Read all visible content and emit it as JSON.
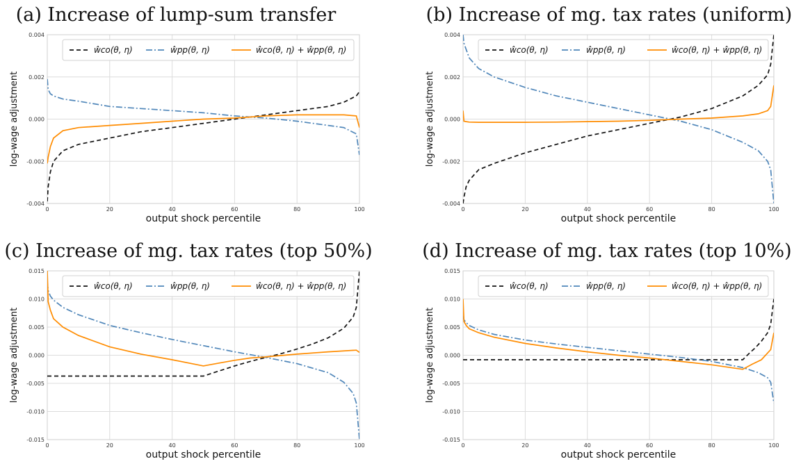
{
  "chart_data": [
    {
      "type": "line",
      "title": "(a) Increase of lump-sum transfer",
      "xlabel": "output shock percentile",
      "ylabel": "log-wage adjustment",
      "xlim": [
        0,
        100
      ],
      "ylim": [
        -0.004,
        0.004
      ],
      "xticks": [
        "0",
        "20",
        "40",
        "60",
        "80",
        "100"
      ],
      "yticks": [
        "-0.004",
        "-0.002",
        "0.000",
        "0.002",
        "0.004"
      ],
      "grid": true,
      "legend_position": "top",
      "series": [
        {
          "name": "ŵco(θ, η)",
          "style": "dashed",
          "color": "#111111",
          "x": [
            0,
            0.3,
            1,
            2,
            5,
            10,
            20,
            30,
            40,
            50,
            60,
            65,
            70,
            80,
            90,
            95,
            99,
            100
          ],
          "y": [
            -0.0039,
            -0.0032,
            -0.0025,
            -0.002,
            -0.0015,
            -0.0012,
            -0.0009,
            -0.0006,
            -0.0004,
            -0.0002,
            0.0,
            0.0001,
            0.0002,
            0.0004,
            0.0006,
            0.0008,
            0.0011,
            0.0013
          ]
        },
        {
          "name": "ŵpp(θ, η)",
          "style": "dashdot",
          "color": "#4f86b9",
          "x": [
            0,
            0.3,
            1,
            2,
            5,
            10,
            20,
            30,
            40,
            50,
            60,
            65,
            70,
            80,
            90,
            95,
            99,
            100
          ],
          "y": [
            0.0019,
            0.0014,
            0.0012,
            0.0011,
            0.00095,
            0.00085,
            0.0006,
            0.0005,
            0.0004,
            0.0003,
            0.00015,
            0.0001,
            5e-05,
            -0.0001,
            -0.0003,
            -0.0004,
            -0.0007,
            -0.0017
          ]
        },
        {
          "name": "ŵco(θ, η) + ŵpp(θ, η)",
          "style": "solid",
          "color": "#ff8c00",
          "x": [
            0,
            0.3,
            1,
            2,
            5,
            10,
            20,
            30,
            40,
            50,
            60,
            65,
            70,
            80,
            90,
            95,
            99,
            100
          ],
          "y": [
            -0.0021,
            -0.0018,
            -0.0013,
            -0.0009,
            -0.00055,
            -0.0004,
            -0.0003,
            -0.0002,
            -0.0001,
            0.0,
            5e-05,
            0.0001,
            0.00015,
            0.0002,
            0.0002,
            0.0002,
            0.00015,
            -0.0004
          ]
        }
      ]
    },
    {
      "type": "line",
      "title": "(b) Increase of mg. tax rates (uniform)",
      "xlabel": "output shock percentile",
      "ylabel": "log-wage adjustment",
      "xlim": [
        0,
        100
      ],
      "ylim": [
        -0.004,
        0.004
      ],
      "xticks": [
        "0",
        "20",
        "40",
        "60",
        "80",
        "100"
      ],
      "yticks": [
        "-0.004",
        "-0.002",
        "0.000",
        "0.002",
        "0.004"
      ],
      "grid": true,
      "legend_position": "top",
      "series": [
        {
          "name": "ŵco(θ, η)",
          "style": "dashed",
          "color": "#111111",
          "x": [
            0,
            0.3,
            1,
            2,
            5,
            10,
            20,
            30,
            40,
            50,
            60,
            70,
            80,
            90,
            95,
            98,
            99,
            100
          ],
          "y": [
            -0.004,
            -0.0037,
            -0.0032,
            -0.0029,
            -0.0024,
            -0.0021,
            -0.0016,
            -0.0012,
            -0.0008,
            -0.0005,
            -0.0002,
            0.0001,
            0.0005,
            0.0011,
            0.0016,
            0.0021,
            0.0026,
            0.004
          ]
        },
        {
          "name": "ŵpp(θ, η)",
          "style": "dashdot",
          "color": "#4f86b9",
          "x": [
            0,
            0.3,
            1,
            2,
            5,
            10,
            20,
            30,
            40,
            50,
            60,
            70,
            80,
            90,
            95,
            98,
            99,
            100
          ],
          "y": [
            0.004,
            0.0036,
            0.0033,
            0.0029,
            0.0024,
            0.002,
            0.0015,
            0.0011,
            0.0008,
            0.0005,
            0.0002,
            -0.0001,
            -0.0005,
            -0.0011,
            -0.0015,
            -0.002,
            -0.0024,
            -0.004
          ]
        },
        {
          "name": "ŵco(θ, η) + ŵpp(θ, η)",
          "style": "solid",
          "color": "#ff8c00",
          "x": [
            0,
            0.3,
            1,
            2,
            5,
            10,
            20,
            30,
            40,
            50,
            60,
            70,
            80,
            90,
            95,
            98,
            99,
            100
          ],
          "y": [
            0.0004,
            -0.0001,
            -0.00012,
            -0.00014,
            -0.00015,
            -0.00015,
            -0.00015,
            -0.00014,
            -0.00012,
            -0.0001,
            -6e-05,
            0.0,
            5e-05,
            0.00015,
            0.00025,
            0.0004,
            0.0006,
            0.0016
          ]
        }
      ]
    },
    {
      "type": "line",
      "title": "(c) Increase of mg. tax rates (top 50%)",
      "xlabel": "output shock percentile",
      "ylabel": "log-wage adjustment",
      "xlim": [
        0,
        100
      ],
      "ylim": [
        -0.015,
        0.015
      ],
      "xticks": [
        "0",
        "20",
        "40",
        "60",
        "80",
        "100"
      ],
      "yticks": [
        "-0.015",
        "-0.010",
        "-0.005",
        "0.000",
        "0.005",
        "0.010",
        "0.015"
      ],
      "grid": true,
      "legend_position": "top",
      "series": [
        {
          "name": "ŵco(θ, η)",
          "style": "dashed",
          "color": "#111111",
          "x": [
            0,
            10,
            20,
            30,
            40,
            50,
            55,
            60,
            65,
            70,
            75,
            80,
            85,
            90,
            95,
            98,
            99,
            100
          ],
          "y": [
            -0.0037,
            -0.0037,
            -0.0037,
            -0.0037,
            -0.0037,
            -0.0037,
            -0.0028,
            -0.0019,
            -0.0011,
            -0.0004,
            0.0003,
            0.0011,
            0.002,
            0.0031,
            0.0048,
            0.0068,
            0.0085,
            0.015
          ]
        },
        {
          "name": "ŵpp(θ, η)",
          "style": "dashdot",
          "color": "#4f86b9",
          "x": [
            0,
            0.3,
            1,
            2,
            5,
            10,
            20,
            30,
            40,
            50,
            60,
            70,
            80,
            90,
            95,
            98,
            99,
            100
          ],
          "y": [
            0.013,
            0.0115,
            0.0105,
            0.0098,
            0.0085,
            0.0072,
            0.0053,
            0.004,
            0.0028,
            0.0017,
            0.0006,
            -0.0004,
            -0.0015,
            -0.0031,
            -0.0048,
            -0.0068,
            -0.0085,
            -0.015
          ]
        },
        {
          "name": "ŵco(θ, η) + ŵpp(θ, η)",
          "style": "solid",
          "color": "#ff8c00",
          "x": [
            0,
            0.3,
            1,
            2,
            5,
            10,
            20,
            30,
            40,
            50,
            55,
            60,
            65,
            70,
            80,
            90,
            99,
            100
          ],
          "y": [
            0.015,
            0.0095,
            0.008,
            0.0065,
            0.005,
            0.0035,
            0.0015,
            0.0002,
            -0.0008,
            -0.0019,
            -0.0014,
            -0.0009,
            -0.0005,
            -0.0003,
            0.0002,
            0.0006,
            0.0009,
            0.0005
          ]
        }
      ]
    },
    {
      "type": "line",
      "title": "(d) Increase of mg. tax rates (top 10%)",
      "xlabel": "output shock percentile",
      "ylabel": "log-wage adjustment",
      "xlim": [
        0,
        100
      ],
      "ylim": [
        -0.015,
        0.015
      ],
      "xticks": [
        "0",
        "20",
        "40",
        "60",
        "80",
        "100"
      ],
      "yticks": [
        "-0.015",
        "-0.010",
        "-0.005",
        "0.000",
        "0.005",
        "0.010",
        "0.015"
      ],
      "grid": true,
      "legend_position": "top",
      "series": [
        {
          "name": "ŵco(θ, η)",
          "style": "dashed",
          "color": "#111111",
          "x": [
            0,
            10,
            20,
            30,
            40,
            50,
            60,
            70,
            80,
            90,
            92,
            94,
            96,
            98,
            99,
            100
          ],
          "y": [
            -0.0008,
            -0.0008,
            -0.0008,
            -0.0008,
            -0.0008,
            -0.0008,
            -0.0008,
            -0.0008,
            -0.0008,
            -0.0008,
            0.0003,
            0.0013,
            0.0025,
            0.004,
            0.0055,
            0.01
          ]
        },
        {
          "name": "ŵpp(θ, η)",
          "style": "dashdot",
          "color": "#4f86b9",
          "x": [
            0,
            0.3,
            1,
            2,
            5,
            10,
            20,
            30,
            40,
            50,
            60,
            70,
            80,
            90,
            95,
            98,
            99,
            100
          ],
          "y": [
            0.007,
            0.0063,
            0.0058,
            0.0053,
            0.0045,
            0.0037,
            0.0027,
            0.002,
            0.0014,
            0.0008,
            0.0002,
            -0.0004,
            -0.0011,
            -0.0022,
            -0.0031,
            -0.004,
            -0.0048,
            -0.0085
          ]
        },
        {
          "name": "ŵco(θ, η) + ŵpp(θ, η)",
          "style": "solid",
          "color": "#ff8c00",
          "x": [
            0,
            0.3,
            1,
            2,
            5,
            10,
            20,
            30,
            40,
            50,
            60,
            70,
            80,
            90,
            93,
            96,
            99,
            100
          ],
          "y": [
            0.01,
            0.006,
            0.0053,
            0.0047,
            0.004,
            0.0032,
            0.0021,
            0.0013,
            0.0006,
            0.0,
            -0.0005,
            -0.0011,
            -0.0017,
            -0.0025,
            -0.0016,
            -0.0008,
            0.001,
            0.004
          ]
        }
      ]
    }
  ]
}
